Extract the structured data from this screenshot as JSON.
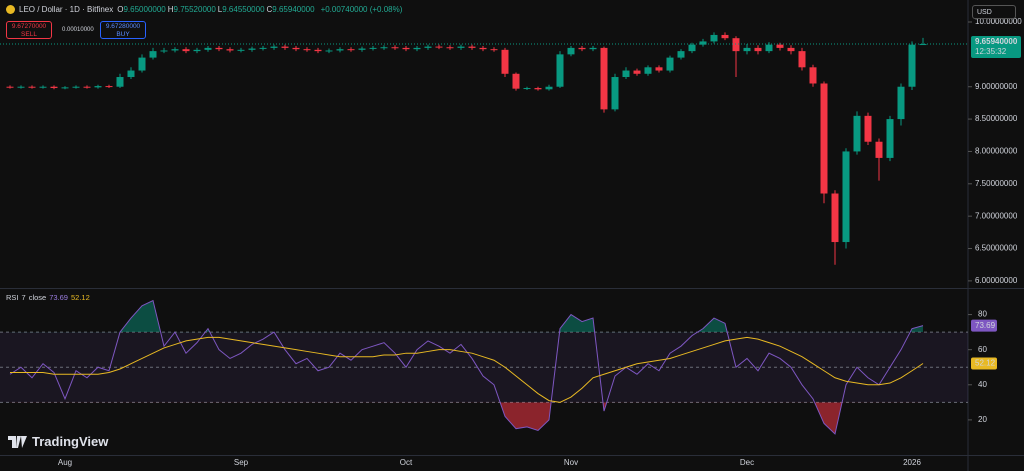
{
  "header": {
    "symbol": "LEO / Dollar · 1D · Bitfinex",
    "ohlc": [
      {
        "key": "O",
        "value": "9.65000000"
      },
      {
        "key": "H",
        "value": "9.75520000"
      },
      {
        "key": "L",
        "value": "9.64550000"
      },
      {
        "key": "C",
        "value": "9.65940000"
      }
    ],
    "change": "+0.00740000 (+0.08%)",
    "sell": {
      "price": "9.67270000",
      "label": "SELL"
    },
    "spread": "0.00010000",
    "buy": {
      "price": "9.67280000",
      "label": "BUY"
    },
    "currency": "USD",
    "last_price": "9.65940000",
    "countdown": "12:35:32",
    "brand": "TradingView"
  },
  "chart_data": [
    {
      "type": "candlestick",
      "up_color": "#089981",
      "down_color": "#f23645",
      "categories": [
        null,
        null,
        null,
        null,
        null,
        "Aug",
        null,
        null,
        null,
        null,
        null,
        null,
        null,
        null,
        null,
        null,
        null,
        null,
        null,
        null,
        null,
        "Sep",
        null,
        null,
        null,
        null,
        null,
        null,
        null,
        null,
        null,
        null,
        null,
        null,
        null,
        null,
        "Oct",
        null,
        null,
        null,
        null,
        null,
        null,
        null,
        null,
        null,
        null,
        null,
        null,
        null,
        null,
        "Nov",
        null,
        null,
        null,
        null,
        null,
        null,
        null,
        null,
        null,
        null,
        null,
        null,
        null,
        null,
        null,
        "Dec",
        null,
        null,
        null,
        null,
        null,
        null,
        null,
        null,
        null,
        null,
        null,
        null,
        null,
        null,
        "2026",
        null
      ],
      "open": [
        9.0,
        8.99,
        9.0,
        8.99,
        9.0,
        8.98,
        8.99,
        9.0,
        8.99,
        9.01,
        9.0,
        9.15,
        9.25,
        9.45,
        9.55,
        9.56,
        9.58,
        9.55,
        9.57,
        9.6,
        9.58,
        9.56,
        9.57,
        9.59,
        9.6,
        9.62,
        9.6,
        9.58,
        9.57,
        9.55,
        9.56,
        9.58,
        9.57,
        9.59,
        9.6,
        9.61,
        9.6,
        9.58,
        9.6,
        9.62,
        9.61,
        9.6,
        9.62,
        9.6,
        9.58,
        9.57,
        9.2,
        8.97,
        8.98,
        8.96,
        9.0,
        9.5,
        9.6,
        9.58,
        9.6,
        8.65,
        9.15,
        9.25,
        9.2,
        9.3,
        9.25,
        9.45,
        9.55,
        9.65,
        9.7,
        9.8,
        9.75,
        9.55,
        9.6,
        9.55,
        9.65,
        9.6,
        9.55,
        9.3,
        9.05,
        7.35,
        6.6,
        8.0,
        8.55,
        8.15,
        7.9,
        8.5,
        9.0,
        9.65
      ],
      "high": [
        9.02,
        9.02,
        9.02,
        9.02,
        9.02,
        9.01,
        9.02,
        9.02,
        9.03,
        9.03,
        9.2,
        9.3,
        9.5,
        9.6,
        9.6,
        9.61,
        9.61,
        9.6,
        9.63,
        9.63,
        9.61,
        9.6,
        9.62,
        9.63,
        9.65,
        9.65,
        9.63,
        9.61,
        9.6,
        9.59,
        9.61,
        9.61,
        9.62,
        9.63,
        9.64,
        9.64,
        9.63,
        9.63,
        9.65,
        9.65,
        9.64,
        9.65,
        9.65,
        9.63,
        9.61,
        9.6,
        9.22,
        9.0,
        9.0,
        9.03,
        9.55,
        9.63,
        9.63,
        9.63,
        9.62,
        9.2,
        9.3,
        9.28,
        9.33,
        9.33,
        9.48,
        9.58,
        9.68,
        9.74,
        9.84,
        9.84,
        9.78,
        9.66,
        9.64,
        9.69,
        9.68,
        9.64,
        9.6,
        9.34,
        9.08,
        7.4,
        8.05,
        8.62,
        8.6,
        8.2,
        8.55,
        9.05,
        9.7,
        9.7552
      ],
      "low": [
        8.97,
        8.97,
        8.97,
        8.97,
        8.96,
        8.96,
        8.97,
        8.97,
        8.97,
        8.98,
        8.98,
        9.12,
        9.22,
        9.42,
        9.52,
        9.53,
        9.52,
        9.52,
        9.54,
        9.55,
        9.53,
        9.53,
        9.54,
        9.56,
        9.57,
        9.57,
        9.55,
        9.54,
        9.52,
        9.52,
        9.53,
        9.54,
        9.54,
        9.56,
        9.57,
        9.57,
        9.55,
        9.55,
        9.57,
        9.58,
        9.57,
        9.57,
        9.57,
        9.55,
        9.54,
        9.15,
        8.94,
        8.95,
        8.94,
        8.94,
        8.98,
        9.47,
        9.55,
        9.55,
        8.6,
        8.62,
        9.12,
        9.17,
        9.17,
        9.22,
        9.22,
        9.42,
        9.52,
        9.62,
        9.67,
        9.72,
        9.15,
        9.5,
        9.5,
        9.52,
        9.56,
        9.5,
        9.25,
        9.0,
        7.2,
        6.25,
        6.5,
        7.95,
        8.1,
        7.55,
        7.85,
        8.4,
        8.95,
        9.6455
      ],
      "close": [
        8.99,
        9.0,
        8.99,
        9.0,
        8.98,
        8.99,
        9.0,
        8.99,
        9.01,
        9.0,
        9.15,
        9.25,
        9.45,
        9.55,
        9.56,
        9.58,
        9.55,
        9.57,
        9.6,
        9.58,
        9.56,
        9.57,
        9.59,
        9.6,
        9.62,
        9.6,
        9.58,
        9.57,
        9.55,
        9.56,
        9.58,
        9.57,
        9.59,
        9.6,
        9.61,
        9.6,
        9.58,
        9.6,
        9.62,
        9.61,
        9.6,
        9.62,
        9.6,
        9.58,
        9.57,
        9.2,
        8.97,
        8.98,
        8.96,
        9.0,
        9.5,
        9.6,
        9.58,
        9.6,
        8.65,
        9.15,
        9.25,
        9.2,
        9.3,
        9.25,
        9.45,
        9.55,
        9.65,
        9.7,
        9.8,
        9.75,
        9.55,
        9.6,
        9.55,
        9.65,
        9.6,
        9.55,
        9.3,
        9.05,
        7.35,
        6.6,
        8.0,
        8.55,
        8.15,
        7.9,
        8.5,
        9.0,
        9.65,
        9.6594
      ],
      "ylim": [
        5.89,
        10.34
      ],
      "yticks": [
        {
          "value": 10,
          "label": "10.00000000"
        },
        {
          "value": 9,
          "label": "9.00000000"
        },
        {
          "value": 8.5,
          "label": "8.50000000"
        },
        {
          "value": 8,
          "label": "8.00000000"
        },
        {
          "value": 7.5,
          "label": "7.50000000"
        },
        {
          "value": 7,
          "label": "7.00000000"
        },
        {
          "value": 6.5,
          "label": "6.50000000"
        },
        {
          "value": 6,
          "label": "6.00000000"
        }
      ]
    },
    {
      "type": "line",
      "title": "RSI",
      "params": [
        "7",
        "close"
      ],
      "series": [
        {
          "color": "#7e57c2",
          "values": [
            46,
            50,
            44,
            52,
            47,
            32,
            48,
            44,
            50,
            48,
            70,
            78,
            85,
            88,
            62,
            70,
            58,
            64,
            72,
            60,
            55,
            58,
            63,
            66,
            70,
            60,
            52,
            55,
            48,
            50,
            58,
            54,
            60,
            62,
            64,
            58,
            50,
            60,
            65,
            62,
            58,
            63,
            55,
            45,
            40,
            22,
            15,
            16,
            14,
            20,
            72,
            80,
            76,
            78,
            25,
            45,
            50,
            46,
            52,
            48,
            58,
            62,
            68,
            72,
            78,
            75,
            50,
            55,
            48,
            58,
            55,
            50,
            40,
            32,
            18,
            12,
            40,
            50,
            44,
            40,
            50,
            60,
            72,
            73.69
          ]
        },
        {
          "color": "#e8b923",
          "values": [
            47,
            47,
            47,
            47,
            46,
            46,
            46,
            46,
            46,
            47,
            49,
            52,
            55,
            58,
            61,
            63,
            65,
            66,
            67,
            67,
            66,
            65,
            64,
            63,
            62,
            61,
            60,
            59,
            58,
            57,
            56,
            56,
            56,
            56,
            57,
            57,
            58,
            58,
            59,
            60,
            60,
            59,
            58,
            56,
            54,
            50,
            45,
            40,
            35,
            31,
            30,
            33,
            38,
            44,
            46,
            48,
            50,
            52,
            53,
            54,
            55,
            57,
            59,
            61,
            63,
            65,
            66,
            67,
            66,
            64,
            62,
            59,
            56,
            52,
            48,
            44,
            42,
            41,
            40,
            40,
            41,
            44,
            48,
            52.12
          ]
        }
      ],
      "levels": [
        70,
        50,
        30
      ],
      "ylim": [
        0,
        94
      ],
      "yticks": [
        20,
        40,
        60,
        80
      ]
    }
  ]
}
